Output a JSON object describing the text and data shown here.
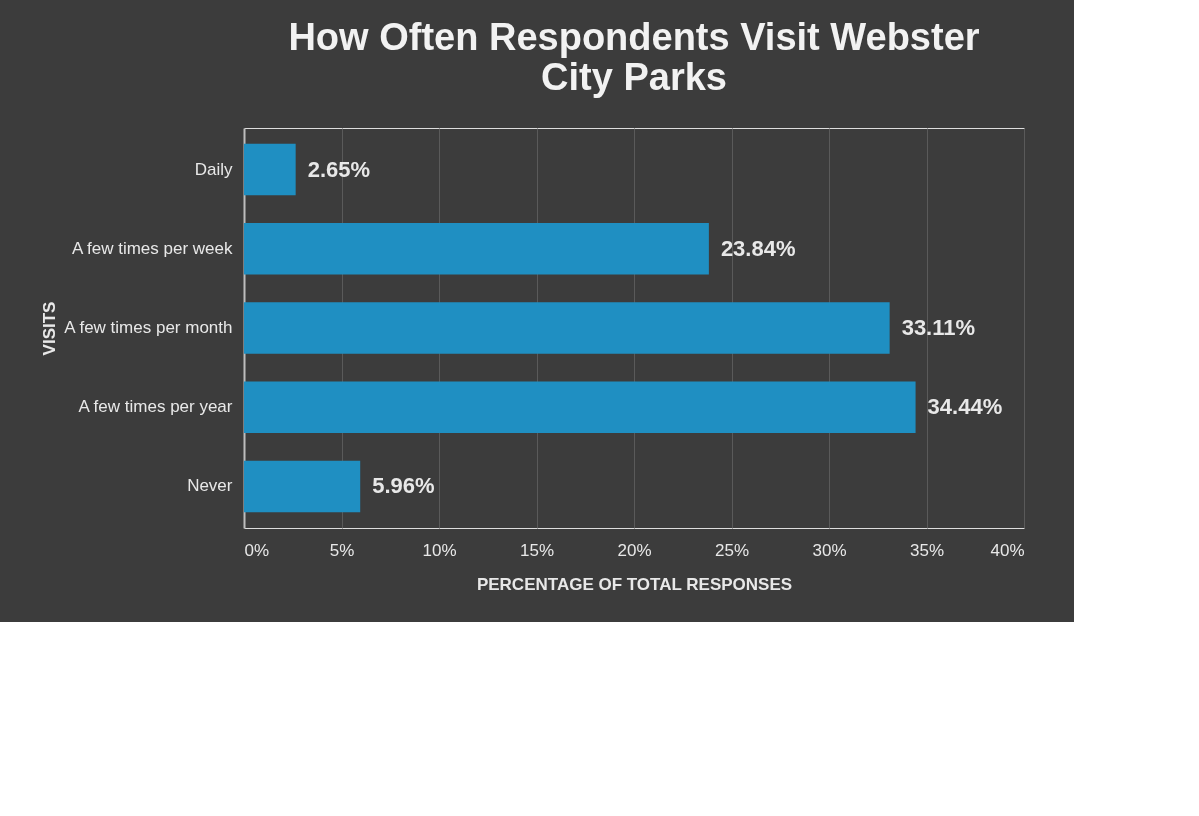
{
  "chart_data": {
    "type": "bar",
    "orientation": "horizontal",
    "title": "How Often Respondents Visit Webster City Parks",
    "xlabel": "PERCENTAGE OF TOTAL RESPONSES",
    "ylabel": "VISITS",
    "categories": [
      "Daily",
      "A few times per week",
      "A few times per month",
      "A few times per year",
      "Never"
    ],
    "series": [
      {
        "color": "#1f8fc2",
        "values": [
          2.65,
          23.84,
          33.11,
          34.44,
          5.96
        ],
        "value_labels": [
          "2.65%",
          "23.84%",
          "33.11%",
          "34.44%",
          "5.96%"
        ]
      }
    ],
    "xlim": [
      0,
      40
    ],
    "xticks": [
      {
        "value": 0,
        "label": "0%"
      },
      {
        "value": 5,
        "label": "5%"
      },
      {
        "value": 10,
        "label": "10%"
      },
      {
        "value": 15,
        "label": "15%"
      },
      {
        "value": 20,
        "label": "20%"
      },
      {
        "value": 25,
        "label": "25%"
      },
      {
        "value": 30,
        "label": "30%"
      },
      {
        "value": 35,
        "label": "35%"
      },
      {
        "value": 40,
        "label": "40%"
      }
    ],
    "grid": "x"
  }
}
